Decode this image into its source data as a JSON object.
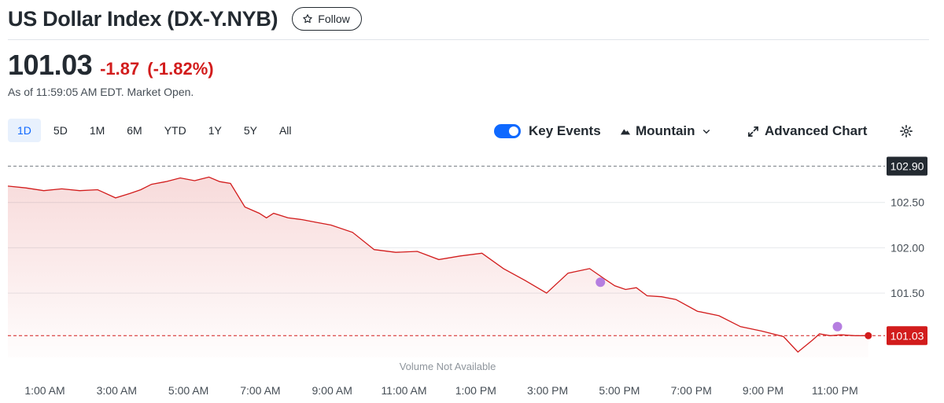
{
  "header": {
    "title": "US Dollar Index (DX-Y.NYB)",
    "follow_label": "Follow"
  },
  "quote": {
    "price": "101.03",
    "change": "-1.87",
    "change_pct": "(-1.82%)",
    "as_of": "As of 11:59:05 AM EDT. Market Open."
  },
  "ranges": [
    "1D",
    "5D",
    "1M",
    "6M",
    "YTD",
    "1Y",
    "5Y",
    "All"
  ],
  "active_range": "1D",
  "toolbar": {
    "key_events": "Key Events",
    "chart_type": "Mountain",
    "advanced": "Advanced Chart"
  },
  "colors": {
    "line": "#d21c1c",
    "accent": "#0f69ff",
    "event": "#b57ee0",
    "previous_close_tag": "#232a31"
  },
  "icons": [
    "star-icon",
    "mountain-icon",
    "chevron-down-icon",
    "expand-icon",
    "gear-icon"
  ],
  "chart_data": {
    "type": "area",
    "x_labels": [
      "1:00 AM",
      "3:00 AM",
      "5:00 AM",
      "7:00 AM",
      "9:00 AM",
      "11:00 AM",
      "1:00 PM",
      "3:00 PM",
      "5:00 PM",
      "7:00 PM",
      "9:00 PM",
      "11:00 PM"
    ],
    "y_ticks": [
      "102.50",
      "102.00",
      "101.50"
    ],
    "y_range": [
      100.79,
      103.0
    ],
    "previous_close": "102.90",
    "current": "101.03",
    "note": "Volume Not Available",
    "series": [
      {
        "x": [
          0.0,
          0.25,
          0.5,
          0.75,
          1.0,
          1.25,
          1.5,
          1.7,
          1.85,
          2.0,
          2.2,
          2.4,
          2.6,
          2.8,
          2.95,
          3.1,
          3.3,
          3.5,
          3.6,
          3.7,
          3.9,
          4.1,
          4.3,
          4.5,
          4.8,
          5.1,
          5.4,
          5.7,
          6.0,
          6.3,
          6.6,
          6.9,
          7.2,
          7.5,
          7.8,
          8.1,
          8.3,
          8.45,
          8.6,
          8.75,
          8.9,
          9.1,
          9.3,
          9.6,
          9.9,
          10.2,
          10.5,
          10.8,
          11.0,
          11.2,
          11.3,
          11.45,
          11.6,
          11.8,
          11.98
        ],
        "y": [
          102.68,
          102.66,
          102.63,
          102.65,
          102.63,
          102.64,
          102.55,
          102.6,
          102.64,
          102.7,
          102.73,
          102.77,
          102.74,
          102.78,
          102.73,
          102.71,
          102.45,
          102.38,
          102.33,
          102.38,
          102.33,
          102.31,
          102.28,
          102.25,
          102.17,
          101.98,
          101.95,
          101.96,
          101.87,
          101.91,
          101.94,
          101.77,
          101.64,
          101.5,
          101.72,
          101.77,
          101.66,
          101.58,
          101.54,
          101.56,
          101.47,
          101.46,
          101.43,
          101.3,
          101.25,
          101.13,
          101.08,
          101.02,
          100.85,
          100.98,
          101.05,
          101.03,
          101.04,
          101.03,
          101.03
        ]
      }
    ],
    "key_events": [
      {
        "x": 8.25,
        "y": 101.62
      },
      {
        "x": 11.55,
        "y": 101.13
      }
    ]
  }
}
